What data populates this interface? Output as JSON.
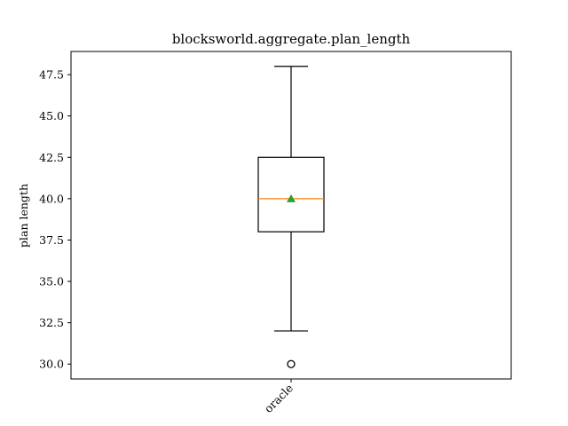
{
  "chart_data": {
    "type": "box",
    "title": "blocksworld.aggregate.plan_length",
    "xlabel": "",
    "ylabel": "plan length",
    "ylim": [
      29.1,
      48.9
    ],
    "yticks": [
      30.0,
      32.5,
      35.0,
      37.5,
      40.0,
      42.5,
      45.0,
      47.5
    ],
    "ytick_labels": [
      "30.0",
      "32.5",
      "35.0",
      "37.5",
      "40.0",
      "42.5",
      "45.0",
      "47.5"
    ],
    "grid": false,
    "categories": [
      "oracle"
    ],
    "boxes": [
      {
        "category": "oracle",
        "whisker_low": 32,
        "q1": 38,
        "median": 40,
        "q3": 42.5,
        "whisker_high": 48,
        "mean": 40,
        "outliers": [
          30
        ]
      }
    ],
    "colors": {
      "box": "#000000",
      "median": "#ff7f0e",
      "mean": "#2ca02c",
      "outlier_edge": "#000000"
    }
  }
}
